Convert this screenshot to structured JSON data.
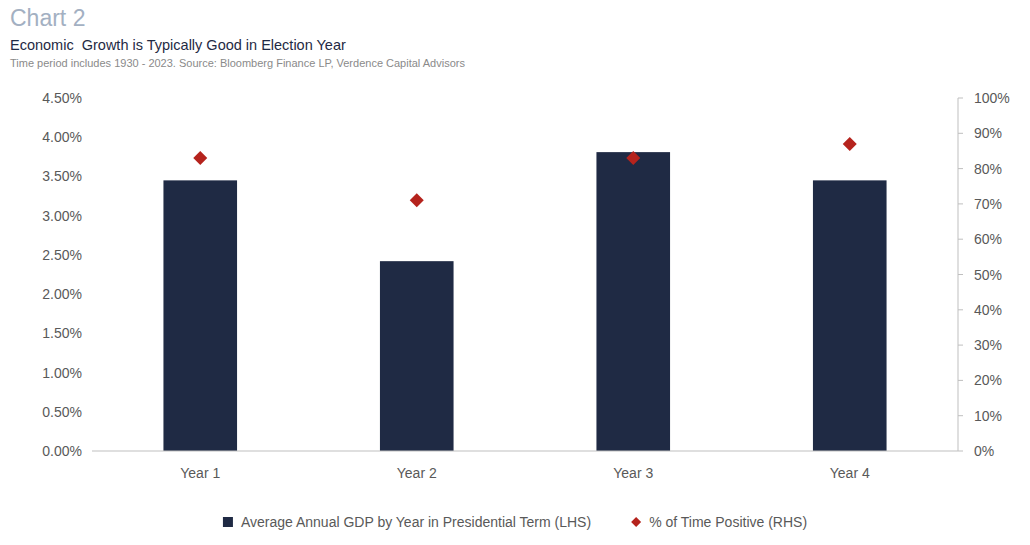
{
  "chart_data": {
    "type": "bar",
    "annotation": "Chart 2",
    "title": "Economic  Growth is Typically Good in Election Year",
    "subtitle": "Time period includes 1930 - 2023. Source: Bloomberg Finance LP, Verdence Capital Advisors",
    "categories": [
      "Year 1",
      "Year 2",
      "Year 3",
      "Year 4"
    ],
    "series": [
      {
        "name": "Average Annual GDP by Year in Presidential Term (LHS)",
        "type": "bar",
        "color": "#1f2a44",
        "axis": "y",
        "values": [
          3.45,
          2.42,
          3.81,
          3.45
        ]
      },
      {
        "name": "% of Time Positive (RHS)",
        "type": "scatter",
        "marker": "diamond",
        "color": "#b5231d",
        "axis": "y2",
        "values": [
          83,
          71,
          83,
          87
        ]
      }
    ],
    "ylim": [
      0,
      4.5
    ],
    "yticks": [
      {
        "value": 0,
        "label": "0.00%"
      },
      {
        "value": 0.5,
        "label": "0.50%"
      },
      {
        "value": 1,
        "label": "1.00%"
      },
      {
        "value": 1.5,
        "label": "1.50%"
      },
      {
        "value": 2,
        "label": "2.00%"
      },
      {
        "value": 2.5,
        "label": "2.50%"
      },
      {
        "value": 3,
        "label": "3.00%"
      },
      {
        "value": 3.5,
        "label": "3.50%"
      },
      {
        "value": 4,
        "label": "4.00%"
      },
      {
        "value": 4.5,
        "label": "4.50%"
      }
    ],
    "y2lim": [
      0,
      100
    ],
    "y2ticks": [
      {
        "value": 0,
        "label": "0%"
      },
      {
        "value": 10,
        "label": "10%"
      },
      {
        "value": 20,
        "label": "20%"
      },
      {
        "value": 30,
        "label": "30%"
      },
      {
        "value": 40,
        "label": "40%"
      },
      {
        "value": 50,
        "label": "50%"
      },
      {
        "value": 60,
        "label": "60%"
      },
      {
        "value": 70,
        "label": "70%"
      },
      {
        "value": 80,
        "label": "80%"
      },
      {
        "value": 90,
        "label": "90%"
      },
      {
        "value": 100,
        "label": "100%"
      }
    ],
    "grid": false,
    "legend": "bottom"
  }
}
